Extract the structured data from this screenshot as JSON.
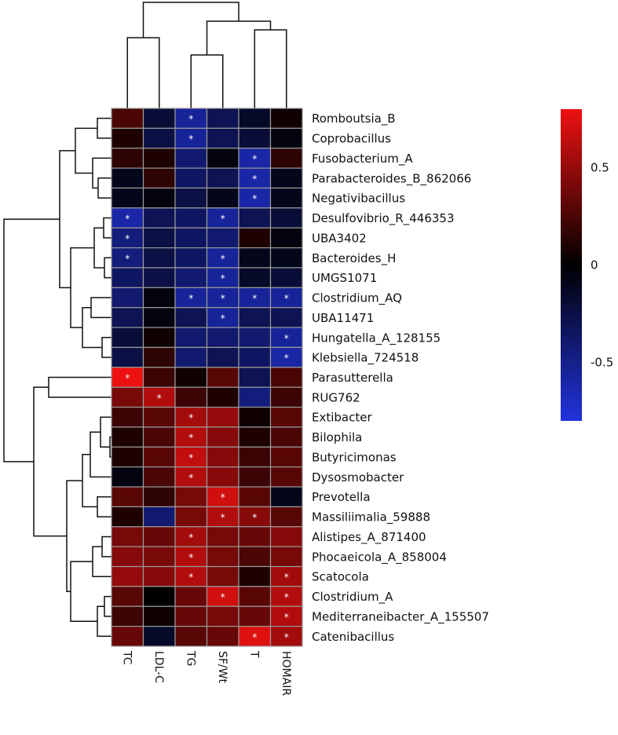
{
  "chart_data": {
    "type": "heatmap",
    "title": "",
    "columns": [
      "TC",
      "LDL-C",
      "TG",
      "SF/Wt",
      "T",
      "HOMAIR"
    ],
    "rows": [
      "Romboutsia_B",
      "Coprobacillus",
      "Fusobacterium_A",
      "Parabacteroides_B_862066",
      "Negativibacillus",
      "Desulfovibrio_R_446353",
      "UBA3402",
      "Bacteroides_H",
      "UMGS1071",
      "Clostridium_AQ",
      "UBA11471",
      "Hungatella_A_128155",
      "Klebsiella_724518",
      "Parasutterella",
      "RUG762",
      "Extibacter",
      "Bilophila",
      "Butyricimonas",
      "Dysosmobacter",
      "Prevotella",
      "Massiliimalia_59888",
      "Alistipes_A_871400",
      "Phocaeicola_A_858004",
      "Scatocola",
      "Clostridium_A",
      "Mediterraneibacter_A_155507",
      "Catenibacillus"
    ],
    "values": [
      [
        0.25,
        -0.2,
        -0.55,
        -0.3,
        -0.15,
        0.05
      ],
      [
        0.1,
        -0.25,
        -0.55,
        -0.3,
        -0.2,
        -0.05
      ],
      [
        0.15,
        0.1,
        -0.4,
        -0.05,
        -0.6,
        0.15
      ],
      [
        -0.1,
        0.15,
        -0.35,
        -0.3,
        -0.6,
        -0.1
      ],
      [
        -0.1,
        -0.05,
        -0.25,
        -0.1,
        -0.6,
        -0.1
      ],
      [
        -0.6,
        -0.3,
        -0.35,
        -0.55,
        -0.3,
        -0.2
      ],
      [
        -0.45,
        -0.25,
        -0.35,
        -0.4,
        0.1,
        -0.05
      ],
      [
        -0.45,
        -0.25,
        -0.35,
        -0.55,
        -0.1,
        -0.1
      ],
      [
        -0.35,
        -0.25,
        -0.4,
        -0.55,
        -0.15,
        -0.2
      ],
      [
        -0.4,
        -0.05,
        -0.55,
        -0.55,
        -0.55,
        -0.55
      ],
      [
        -0.3,
        -0.05,
        -0.3,
        -0.55,
        -0.3,
        -0.3
      ],
      [
        -0.2,
        0.05,
        -0.4,
        -0.4,
        -0.4,
        -0.55
      ],
      [
        -0.25,
        0.15,
        -0.4,
        -0.3,
        -0.35,
        -0.6
      ],
      [
        0.8,
        0.2,
        0.05,
        0.3,
        -0.3,
        0.25
      ],
      [
        0.4,
        0.6,
        0.2,
        0.1,
        -0.45,
        0.2
      ],
      [
        0.2,
        0.3,
        0.55,
        0.5,
        0.05,
        0.3
      ],
      [
        0.1,
        0.25,
        0.6,
        0.45,
        0.1,
        0.25
      ],
      [
        0.1,
        0.3,
        0.65,
        0.45,
        0.2,
        0.3
      ],
      [
        -0.05,
        0.25,
        0.6,
        0.45,
        0.2,
        0.3
      ],
      [
        0.3,
        0.15,
        0.4,
        0.7,
        0.3,
        -0.1
      ],
      [
        0.1,
        -0.4,
        0.4,
        0.6,
        0.45,
        0.3
      ],
      [
        0.4,
        0.35,
        0.55,
        0.4,
        0.35,
        0.45
      ],
      [
        0.45,
        0.4,
        0.6,
        0.4,
        0.25,
        0.4
      ],
      [
        0.5,
        0.45,
        0.6,
        0.4,
        0.1,
        0.55
      ],
      [
        0.3,
        0.0,
        0.35,
        0.7,
        0.3,
        0.6
      ],
      [
        0.2,
        0.05,
        0.35,
        0.4,
        0.35,
        0.6
      ],
      [
        0.35,
        -0.15,
        0.3,
        0.35,
        0.75,
        0.55
      ]
    ],
    "significant": [
      [
        0,
        2
      ],
      [
        1,
        2
      ],
      [
        2,
        4
      ],
      [
        3,
        4
      ],
      [
        4,
        4
      ],
      [
        5,
        0
      ],
      [
        5,
        3
      ],
      [
        6,
        0
      ],
      [
        7,
        0
      ],
      [
        7,
        3
      ],
      [
        8,
        3
      ],
      [
        9,
        2
      ],
      [
        9,
        3
      ],
      [
        9,
        4
      ],
      [
        9,
        5
      ],
      [
        10,
        3
      ],
      [
        11,
        5
      ],
      [
        12,
        5
      ],
      [
        13,
        0
      ],
      [
        14,
        1
      ],
      [
        15,
        2
      ],
      [
        16,
        2
      ],
      [
        17,
        2
      ],
      [
        18,
        2
      ],
      [
        19,
        3
      ],
      [
        20,
        3
      ],
      [
        20,
        4
      ],
      [
        21,
        2
      ],
      [
        22,
        2
      ],
      [
        23,
        2
      ],
      [
        23,
        5
      ],
      [
        24,
        3
      ],
      [
        24,
        5
      ],
      [
        25,
        5
      ],
      [
        26,
        4
      ],
      [
        26,
        5
      ]
    ],
    "significance_marker": "*",
    "color_scale": {
      "low": "#2233dd",
      "mid": "#000000",
      "high": "#ee1111",
      "range": [
        -0.8,
        0.8
      ],
      "ticks": [
        {
          "value": 0.5,
          "label": "0.5"
        },
        {
          "value": 0,
          "label": "0"
        },
        {
          "value": -0.5,
          "label": "-0.5"
        }
      ]
    },
    "column_dendrogram": "((TC,LDL-C),((TG,SF/Wt),(T,HOMAIR)))",
    "row_dendrogram": "clustered, rows split into a negative-correlation cluster (Romboutsia_B..Klebsiella_724518) and a positive-correlation cluster (Parasutterella..Catenibacillus)"
  }
}
